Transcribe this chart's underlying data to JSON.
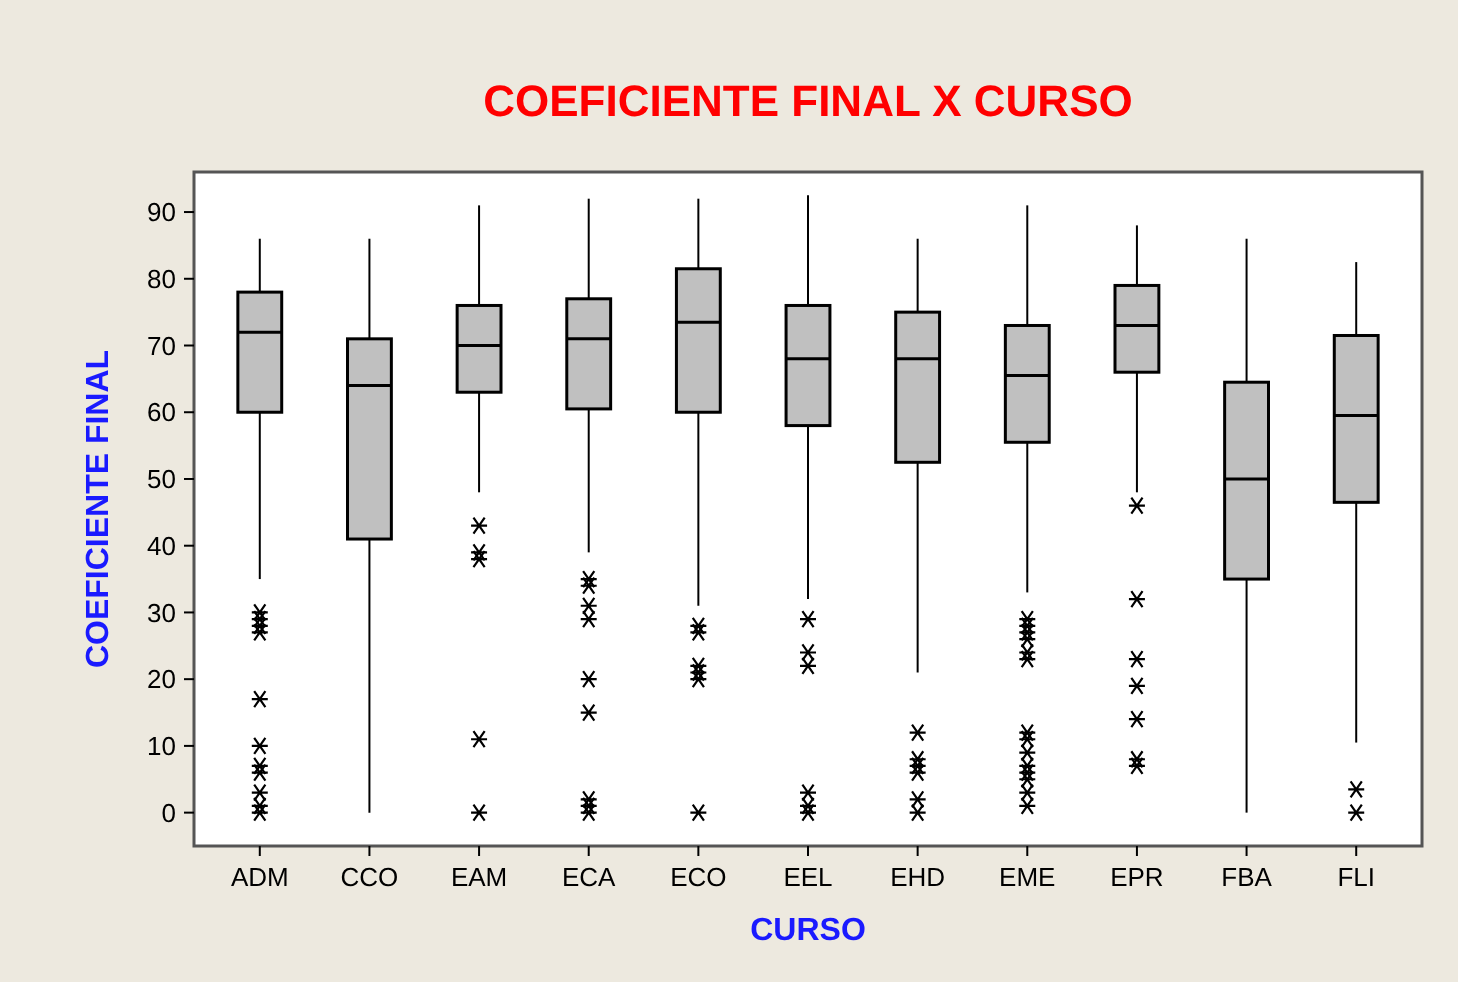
{
  "chart_data": {
    "type": "box",
    "title": "COEFICIENTE FINAL X CURSO",
    "xlabel": "CURSO",
    "ylabel": "COEFICIENTE FINAL",
    "categories": [
      "ADM",
      "CCO",
      "EAM",
      "ECA",
      "ECO",
      "EEL",
      "EHD",
      "EME",
      "EPR",
      "FBA",
      "FLI"
    ],
    "boxes": [
      {
        "low": 35,
        "q1": 60,
        "median": 72,
        "q3": 78,
        "high": 86,
        "outliers": [
          30,
          29,
          28,
          27,
          17,
          10,
          7,
          6,
          3,
          1,
          0
        ]
      },
      {
        "low": 0,
        "q1": 41,
        "median": 64,
        "q3": 71,
        "high": 86
      },
      {
        "low": 48,
        "q1": 63,
        "median": 70,
        "q3": 76,
        "high": 91,
        "outliers": [
          43,
          39,
          38,
          11,
          0
        ]
      },
      {
        "low": 39,
        "q1": 60.5,
        "median": 71,
        "q3": 77,
        "high": 92,
        "outliers": [
          35,
          34,
          31,
          29,
          20,
          15,
          2,
          1,
          0
        ]
      },
      {
        "low": 31,
        "q1": 60,
        "median": 73.5,
        "q3": 81.5,
        "high": 92,
        "outliers": [
          28,
          27,
          22,
          21,
          20,
          0
        ]
      },
      {
        "low": 32,
        "q1": 58,
        "median": 68,
        "q3": 76,
        "high": 92.5,
        "outliers": [
          29,
          24,
          22,
          3,
          1,
          0
        ]
      },
      {
        "low": 21,
        "q1": 52.5,
        "median": 68,
        "q3": 75,
        "high": 86,
        "outliers": [
          12,
          8,
          7,
          6,
          2,
          0
        ]
      },
      {
        "low": 33,
        "q1": 55.5,
        "median": 65.5,
        "q3": 73,
        "high": 91,
        "outliers": [
          29,
          28,
          27,
          26,
          24,
          23,
          12,
          11,
          9,
          7,
          6,
          5,
          3,
          1
        ]
      },
      {
        "low": 48,
        "q1": 66,
        "median": 73,
        "q3": 79,
        "high": 88,
        "outliers": [
          46,
          32,
          23,
          19,
          14,
          8,
          7
        ]
      },
      {
        "low": 0,
        "q1": 35,
        "median": 50,
        "q3": 64.5,
        "high": 86
      },
      {
        "low": 10.5,
        "q1": 46.5,
        "median": 59.5,
        "q3": 71.5,
        "high": 82.5,
        "outliers": [
          3.5,
          0
        ]
      }
    ],
    "color": "#c0c0c0",
    "ylim": [
      -5,
      96
    ],
    "yticks": [
      0,
      10,
      20,
      30,
      40,
      50,
      60,
      70,
      80,
      90
    ],
    "marker": "star"
  }
}
